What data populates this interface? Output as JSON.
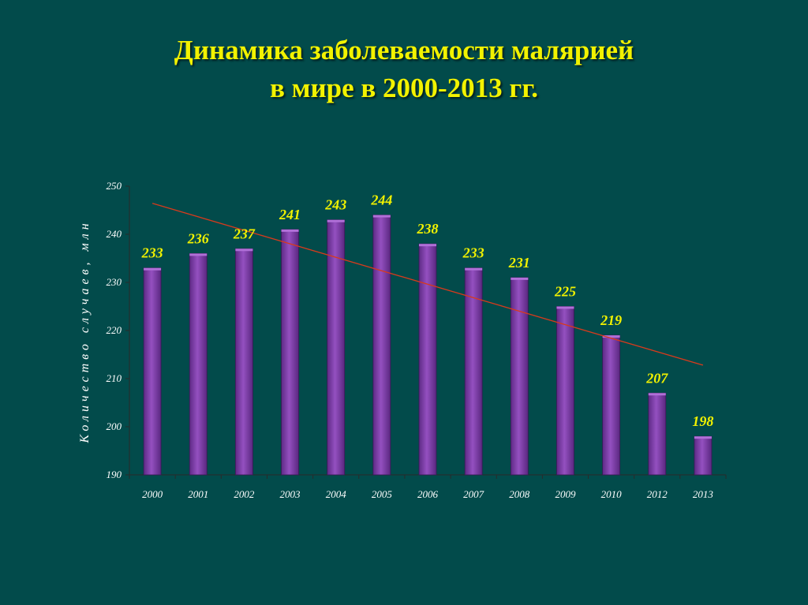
{
  "slide": {
    "title_line1": "Динамика заболеваемости малярией",
    "title_line2": "в мире в 2000-2013 гг."
  },
  "chart_data": {
    "type": "bar",
    "categories": [
      "2000",
      "2001",
      "2002",
      "2003",
      "2004",
      "2005",
      "2006",
      "2007",
      "2008",
      "2009",
      "2010",
      "2012",
      "2013"
    ],
    "values": [
      233,
      236,
      237,
      241,
      243,
      244,
      238,
      233,
      231,
      225,
      219,
      207,
      198
    ],
    "ylabel": "Количество случаев, млн",
    "ylim": [
      190,
      250
    ],
    "yticks": [
      190,
      200,
      210,
      220,
      230,
      240,
      250
    ],
    "trendline": {
      "type": "linear",
      "color": "#d83a1c"
    },
    "bar_color": "#7a3aa0",
    "label_color": "#f2f200",
    "grid": false,
    "legend": "none"
  }
}
